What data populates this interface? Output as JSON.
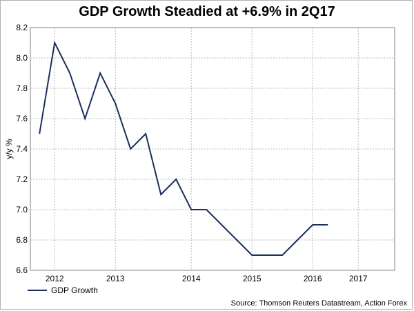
{
  "chart_data": {
    "type": "line",
    "title": "GDP Growth Steadied at +6.9% in 2Q17",
    "ylabel": "y/y %",
    "xlabel": "",
    "ylim": [
      6.6,
      8.2
    ],
    "yticks": [
      "6.6",
      "6.8",
      "7.0",
      "7.2",
      "7.4",
      "7.6",
      "7.8",
      "8.0",
      "8.2"
    ],
    "xticks": [
      {
        "label": "2012",
        "x": 2012.0
      },
      {
        "label": "2013",
        "x": 2013.0
      },
      {
        "label": "2014",
        "x": 2014.25
      },
      {
        "label": "2015",
        "x": 2015.25
      },
      {
        "label": "2016",
        "x": 2016.25
      },
      {
        "label": "2017",
        "x": 2017.0
      }
    ],
    "xlim": [
      2011.6,
      2017.6
    ],
    "grid": true,
    "legend_position": "bottom-left",
    "series": [
      {
        "name": "GDP Growth",
        "color": "#1a2f5a",
        "x": [
          2011.75,
          2012.0,
          2012.25,
          2012.5,
          2012.75,
          2013.0,
          2013.25,
          2013.5,
          2013.75,
          2014.0,
          2014.25,
          2014.5,
          2014.75,
          2015.0,
          2015.25,
          2015.5,
          2015.75,
          2016.0,
          2016.25,
          2016.5,
          2016.75,
          2017.0,
          2017.25
        ],
        "values": [
          7.5,
          8.1,
          7.9,
          7.6,
          7.9,
          7.7,
          7.4,
          7.5,
          7.1,
          7.2,
          7.0,
          7.0,
          6.9,
          6.8,
          6.7,
          6.7,
          6.7,
          6.8,
          6.9,
          6.9,
          null,
          null,
          null
        ]
      }
    ]
  },
  "source_note": "Source: Thomson Reuters Datastream, Action Forex"
}
